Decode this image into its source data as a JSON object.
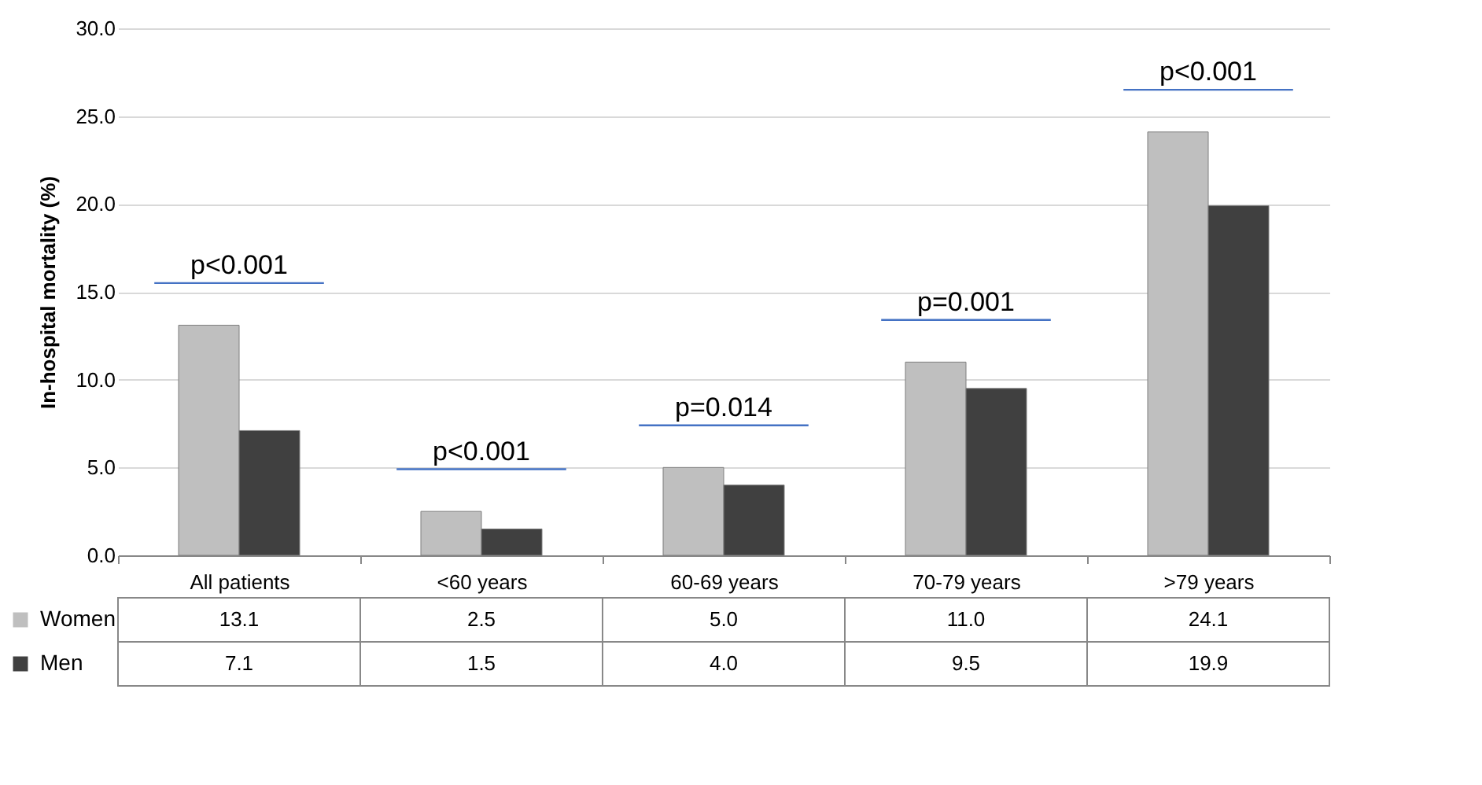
{
  "chart_data": {
    "type": "bar",
    "ylabel": "In-hospital mortality (%)",
    "categories": [
      "All patients",
      "<60 years",
      "60-69 years",
      "70-79 years",
      ">79 years"
    ],
    "series": [
      {
        "name": "Women",
        "color": "#bfbfbf",
        "values": [
          13.1,
          2.5,
          5.0,
          11.0,
          24.1
        ],
        "value_labels": [
          "13.1",
          "2.5",
          "5.0",
          "11.0",
          "24.1"
        ]
      },
      {
        "name": "Men",
        "color": "#404040",
        "values": [
          7.1,
          1.5,
          4.0,
          9.5,
          19.9
        ],
        "value_labels": [
          "7.1",
          "1.5",
          "4.0",
          "9.5",
          "19.9"
        ]
      }
    ],
    "ylim": [
      0,
      30
    ],
    "yticks": [
      {
        "value": 0,
        "label": "0.0"
      },
      {
        "value": 5,
        "label": "5.0"
      },
      {
        "value": 10,
        "label": "10.0"
      },
      {
        "value": 15,
        "label": "15.0"
      },
      {
        "value": 20,
        "label": "20.0"
      },
      {
        "value": 25,
        "label": "25.0"
      },
      {
        "value": 30,
        "label": "30.0"
      }
    ],
    "grid": "y",
    "legend": "bottom left",
    "annotations": [
      "p<0.001",
      "p<0.001",
      "p=0.014",
      "p=0.001",
      "p<0.001"
    ]
  }
}
